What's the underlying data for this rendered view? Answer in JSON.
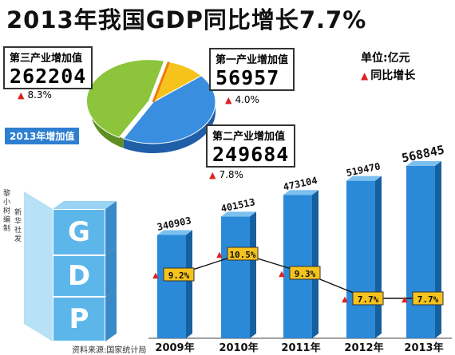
{
  "title": "2013年我国GDP同比增长7.7%",
  "legend": {
    "unit": "单位:亿元",
    "growth": "同比增长"
  },
  "badge": "2013年增加值",
  "credit": [
    "黎小树编制",
    "新华社发"
  ],
  "source": "资料来源:国家统计局",
  "cube_letters": [
    "G",
    "D",
    "P"
  ],
  "colors": {
    "bar": "#2a8ad8",
    "primary": "#f5c31c",
    "secondary": "#3a8ee0",
    "tertiary": "#8cc43c",
    "accent": "#e02020",
    "label_bg": "#f5c31c"
  },
  "chart_data": [
    {
      "type": "pie",
      "title": "2013年增加值",
      "slices": [
        {
          "label": "第一产业增加值",
          "value": 56957,
          "growth_label": "4.0%"
        },
        {
          "label": "第二产业增加值",
          "value": 249684,
          "growth_label": "7.8%"
        },
        {
          "label": "第三产业增加值",
          "value": 262204,
          "growth_label": "8.3%"
        }
      ]
    },
    {
      "type": "bar",
      "categories": [
        "2009年",
        "2010年",
        "2011年",
        "2012年",
        "2013年"
      ],
      "values": [
        340903,
        401513,
        473104,
        519470,
        568845
      ],
      "value_labels": [
        "340903",
        "401513",
        "473104",
        "519470",
        "568845"
      ],
      "ylim": [
        0,
        600000
      ],
      "growth": {
        "type": "line",
        "values": [
          9.2,
          10.5,
          9.3,
          7.7,
          7.7
        ],
        "labels": [
          "9.2%",
          "10.5%",
          "9.3%",
          "7.7%",
          "7.7%"
        ],
        "ylim": [
          7,
          11
        ]
      }
    }
  ]
}
